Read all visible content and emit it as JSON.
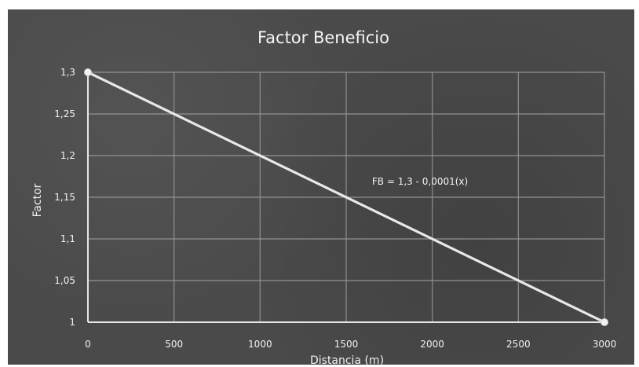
{
  "chart_data": {
    "type": "line",
    "title": "Factor Beneficio",
    "xlabel": "Distancia (m)",
    "ylabel": "Factor",
    "xlim": [
      0,
      3000
    ],
    "ylim": [
      1,
      1.3
    ],
    "x_ticks": [
      0,
      500,
      1000,
      1500,
      2000,
      2500,
      3000
    ],
    "x_tick_labels": [
      "0",
      "500",
      "1000",
      "1500",
      "2000",
      "2500",
      "3000"
    ],
    "y_ticks": [
      1,
      1.05,
      1.1,
      1.15,
      1.2,
      1.25,
      1.3
    ],
    "y_tick_labels": [
      "1",
      "1,05",
      "1,1",
      "1,15",
      "1,2",
      "1,25",
      "1,3"
    ],
    "grid": true,
    "legend": "none",
    "series": [
      {
        "points": [
          {
            "x": 0,
            "y": 1.3
          },
          {
            "x": 3000,
            "y": 1.0
          }
        ],
        "color": "#e9e9e9"
      }
    ],
    "annotation": {
      "text": "FB = 1,3 - 0,0001(x)",
      "x": 1650,
      "y": 1.165
    },
    "colors": {
      "background": "#4a4a4a",
      "grid": "#9a9a9a",
      "axis": "#e6e6e6",
      "text": "#f2f2f2"
    }
  }
}
